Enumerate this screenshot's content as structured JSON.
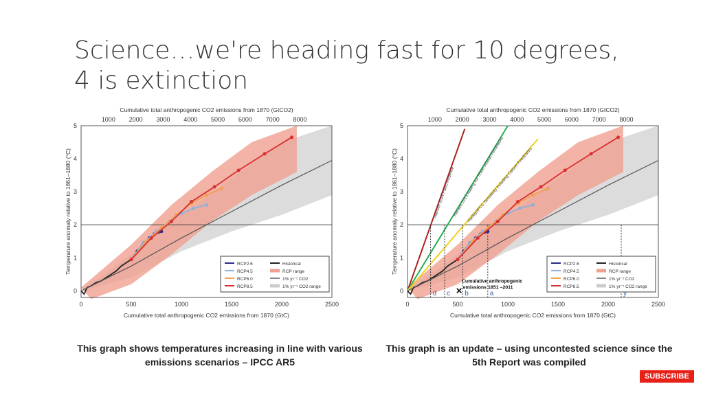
{
  "slide": {
    "title": "Science…we're heading fast for 10 degrees, 4 is extinction",
    "caption_left": "This graph shows temperatures increasing in line with various emissions scenarios – IPCC AR5",
    "caption_right": "This graph is an update – using uncontested science since the  5th Report was compiled",
    "subscribe": "SUBSCRIBE"
  },
  "chart_data": [
    {
      "type": "line",
      "title": "",
      "xlabel": "Cumulative total anthropogenic CO2 emissions from 1870 (GtC)",
      "x2label": "Cumulative total anthropogenic CO2 emissions from 1870 (GtCO2)",
      "ylabel": "Temperature anomaly relative to 1861–1880 (°C)",
      "xlim": [
        0,
        2500
      ],
      "ylim": [
        -0.2,
        5
      ],
      "xticks": [
        0,
        500,
        1000,
        1500,
        2000,
        2500
      ],
      "yticks": [
        0,
        1,
        2,
        3,
        4,
        5
      ],
      "x2ticks": [
        1000,
        2000,
        3000,
        4000,
        5000,
        6000,
        7000,
        8000
      ],
      "hline": 2,
      "legend": {
        "position": "bottom-right",
        "entries": [
          "RCP2.6",
          "RCP4.5",
          "RCP6.0",
          "RCP8.5",
          "Historical",
          "RCP range",
          "1% yr⁻¹ CO2",
          "1% yr⁻¹ CO2 range"
        ]
      },
      "series": [
        {
          "name": "Historical",
          "color": "#222222",
          "x": [
            0,
            30,
            60,
            100,
            150,
            200,
            250,
            300,
            350,
            400,
            450,
            500
          ],
          "y": [
            0,
            -0.1,
            0.1,
            0.15,
            0.25,
            0.3,
            0.4,
            0.5,
            0.6,
            0.75,
            0.85,
            0.95
          ]
        },
        {
          "name": "1% yr⁻¹ CO2",
          "color": "#555555",
          "x": [
            0,
            500,
            1000,
            1500,
            2000,
            2500
          ],
          "y": [
            0,
            0.75,
            1.6,
            2.4,
            3.2,
            3.95
          ]
        },
        {
          "name": "RCP2.6",
          "color": "#2a2a8a",
          "x": [
            500,
            560,
            620,
            680,
            730,
            770,
            800
          ],
          "y": [
            0.95,
            1.2,
            1.45,
            1.6,
            1.72,
            1.78,
            1.8
          ]
        },
        {
          "name": "RCP4.5",
          "color": "#8fb0dd",
          "x": [
            500,
            620,
            750,
            880,
            1000,
            1120,
            1250
          ],
          "y": [
            0.95,
            1.45,
            1.8,
            2.1,
            2.35,
            2.5,
            2.6
          ]
        },
        {
          "name": "RCP6.0",
          "color": "#f0a050",
          "x": [
            500,
            650,
            800,
            950,
            1100,
            1250,
            1400
          ],
          "y": [
            0.95,
            1.5,
            1.9,
            2.3,
            2.65,
            2.9,
            3.1
          ]
        },
        {
          "name": "RCP8.5",
          "color": "#d83030",
          "x": [
            500,
            700,
            900,
            1100,
            1330,
            1570,
            1830,
            2100
          ],
          "y": [
            0.95,
            1.6,
            2.1,
            2.7,
            3.15,
            3.65,
            4.15,
            4.65
          ]
        }
      ]
    },
    {
      "type": "line",
      "title": "",
      "xlabel": "Cumulative total anthropogenic CO2 emissions from 1870 (GtC)",
      "x2label": "Cumulative total anthropogenic CO2 emissions from 1870 (GtCO2)",
      "ylabel": "Temperature anomaly relative to 1861–1880 (°C)",
      "xlim": [
        0,
        2500
      ],
      "ylim": [
        -0.2,
        5
      ],
      "xticks": [
        0,
        500,
        1000,
        1500,
        2000,
        2500
      ],
      "yticks": [
        0,
        1,
        2,
        3,
        4,
        5
      ],
      "x2ticks": [
        1000,
        2000,
        3000,
        4000,
        5000,
        6000,
        7000,
        8000
      ],
      "hline": 2,
      "legend": {
        "position": "bottom-right",
        "entries": [
          "RCP2.6",
          "RCP4.5",
          "RCP6.0",
          "RCP8.5",
          "Historical",
          "RCP range",
          "1% yr⁻¹ CO2",
          "1% yr⁻¹ CO2 range"
        ]
      },
      "annotation": "Cumulative anthropogenic emissions 1851 –2011",
      "markers": [
        {
          "label": "d",
          "x": 230
        },
        {
          "label": "c",
          "x": 370
        },
        {
          "label": "b",
          "x": 550
        },
        {
          "label": "a",
          "x": 800
        },
        {
          "label": "y",
          "x": 2130
        }
      ],
      "extra_lines": [
        {
          "name": "Hansen 2014 Paleo evidence",
          "color": "#b02020",
          "x": [
            0,
            570
          ],
          "y": [
            0,
            4.9
          ]
        },
        {
          "name": "Hansen 2013 Adding Ice Sheet Albedo Feedbacks",
          "color": "#20b050",
          "x": [
            0,
            1000
          ],
          "y": [
            0,
            5
          ]
        },
        {
          "name": "Hadley/IPCC Sensitivity including Carbon Feedbacks",
          "color": "#f0d020",
          "x": [
            0,
            1300
          ],
          "y": [
            0,
            4.6
          ]
        }
      ],
      "series": [
        {
          "name": "Historical",
          "color": "#222222",
          "x": [
            0,
            30,
            60,
            100,
            150,
            200,
            250,
            300,
            350,
            400,
            450,
            500
          ],
          "y": [
            0,
            -0.1,
            0.1,
            0.15,
            0.25,
            0.3,
            0.4,
            0.5,
            0.6,
            0.75,
            0.85,
            0.95
          ]
        },
        {
          "name": "1% yr⁻¹ CO2",
          "color": "#555555",
          "x": [
            0,
            500,
            1000,
            1500,
            2000,
            2500
          ],
          "y": [
            0,
            0.75,
            1.6,
            2.4,
            3.2,
            3.95
          ]
        },
        {
          "name": "RCP2.6",
          "color": "#2a2a8a",
          "x": [
            500,
            560,
            620,
            680,
            730,
            770,
            800
          ],
          "y": [
            0.95,
            1.2,
            1.45,
            1.6,
            1.72,
            1.78,
            1.8
          ]
        },
        {
          "name": "RCP4.5",
          "color": "#8fb0dd",
          "x": [
            500,
            620,
            750,
            880,
            1000,
            1120,
            1250
          ],
          "y": [
            0.95,
            1.45,
            1.8,
            2.1,
            2.35,
            2.5,
            2.6
          ]
        },
        {
          "name": "RCP6.0",
          "color": "#f0a050",
          "x": [
            500,
            650,
            800,
            950,
            1100,
            1250,
            1400
          ],
          "y": [
            0.95,
            1.5,
            1.9,
            2.3,
            2.65,
            2.9,
            3.1
          ]
        },
        {
          "name": "RCP8.5",
          "color": "#d83030",
          "x": [
            500,
            700,
            900,
            1100,
            1330,
            1570,
            1830,
            2100
          ],
          "y": [
            0.95,
            1.6,
            2.1,
            2.7,
            3.15,
            3.65,
            4.15,
            4.65
          ]
        }
      ]
    }
  ]
}
